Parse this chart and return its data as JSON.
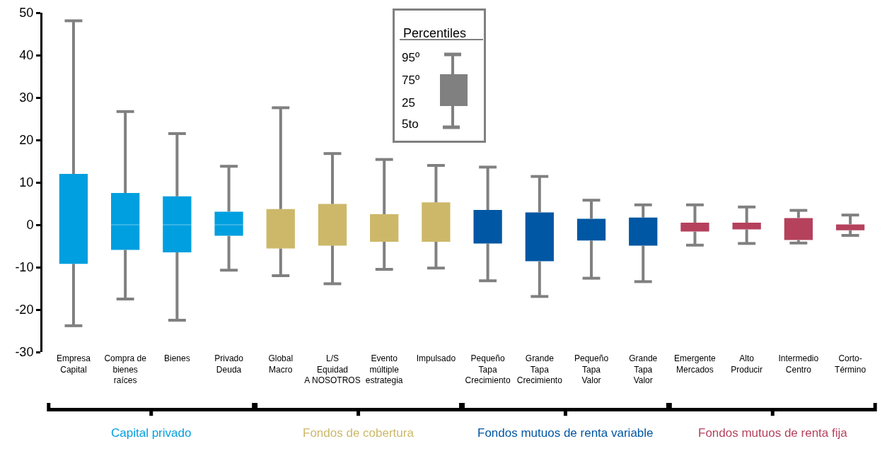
{
  "chart_data": {
    "type": "box",
    "categories": [
      "Empresa\nCapital",
      "Compra de bienes raíces",
      "Bienes",
      "Privado\nDeuda",
      "Global\nMacro",
      "L/S\nEquidad\nA NOSOTROS",
      "Evento múltiple\nestrategia",
      "Impulsado",
      "Pequeño\nTapa\nCrecimiento",
      "Grande\nTapa\nCrecimiento",
      "Pequeño\nTapa\nValor",
      "Grande\nTapa\nValor",
      "Emergente\nMercados",
      "Alto\nProducir",
      "Intermedio\nCentro",
      "Corto-\nTérmino"
    ],
    "series": [
      {
        "name": "Capital privado",
        "color": "#009fdf",
        "boxes": [
          {
            "low": -23.8,
            "q1": -9.2,
            "median": null,
            "q3": 12.0,
            "high": 48.1
          },
          {
            "low": -17.5,
            "q1": -5.9,
            "median": 0,
            "q3": 7.5,
            "high": 26.7
          },
          {
            "low": -22.5,
            "q1": -6.5,
            "median": 0,
            "q3": 6.7,
            "high": 21.5
          },
          {
            "low": -10.7,
            "q1": -2.6,
            "median": 0,
            "q3": 3.1,
            "high": 13.8
          },
          null,
          null,
          null,
          null,
          null,
          null,
          null,
          null,
          null,
          null,
          null,
          null
        ]
      },
      {
        "name": "Fondos de cobertura",
        "color": "#cdb86a",
        "boxes": [
          null,
          null,
          null,
          null,
          {
            "low": -12.0,
            "q1": -5.6,
            "median": null,
            "q3": 3.7,
            "high": 27.6
          },
          {
            "low": -13.9,
            "q1": -4.9,
            "median": null,
            "q3": 4.9,
            "high": 16.8
          },
          {
            "low": -10.5,
            "q1": -4.0,
            "median": null,
            "q3": 2.5,
            "high": 15.4
          },
          {
            "low": -10.2,
            "q1": -4.0,
            "median": null,
            "q3": 5.3,
            "high": 14.0
          },
          null,
          null,
          null,
          null,
          null,
          null,
          null,
          null
        ]
      },
      {
        "name": "Fondos mutuos de renta variable",
        "color": "#0057a3",
        "boxes": [
          null,
          null,
          null,
          null,
          null,
          null,
          null,
          null,
          {
            "low": -13.2,
            "q1": -4.4,
            "median": null,
            "q3": 3.5,
            "high": 13.6
          },
          {
            "low": -16.9,
            "q1": -8.6,
            "median": null,
            "q3": 2.9,
            "high": 11.4
          },
          {
            "low": -12.6,
            "q1": -3.7,
            "median": null,
            "q3": 1.4,
            "high": 5.8
          },
          {
            "low": -13.4,
            "q1": -4.9,
            "median": null,
            "q3": 1.7,
            "high": 4.7
          },
          null,
          null,
          null,
          null
        ]
      },
      {
        "name": "Fondos mutuos de renta fija",
        "color": "#b5415d",
        "boxes": [
          null,
          null,
          null,
          null,
          null,
          null,
          null,
          null,
          null,
          null,
          null,
          null,
          {
            "low": -4.8,
            "q1": -1.6,
            "median": null,
            "q3": 0.5,
            "high": 4.7
          },
          {
            "low": -4.4,
            "q1": -1.1,
            "median": null,
            "q3": 0.5,
            "high": 4.2
          },
          {
            "low": -4.3,
            "q1": -3.6,
            "median": null,
            "q3": 1.6,
            "high": 3.4
          },
          {
            "low": -2.5,
            "q1": -1.3,
            "median": null,
            "q3": 0.1,
            "high": 2.3
          }
        ]
      }
    ],
    "ylim": [
      -30,
      50
    ],
    "yticks": [
      -30,
      -20,
      -10,
      0,
      10,
      20,
      30,
      40,
      50
    ],
    "grid": false,
    "annotations": [
      "Percentiles",
      "95º",
      "75º",
      "25",
      "5to"
    ]
  }
}
